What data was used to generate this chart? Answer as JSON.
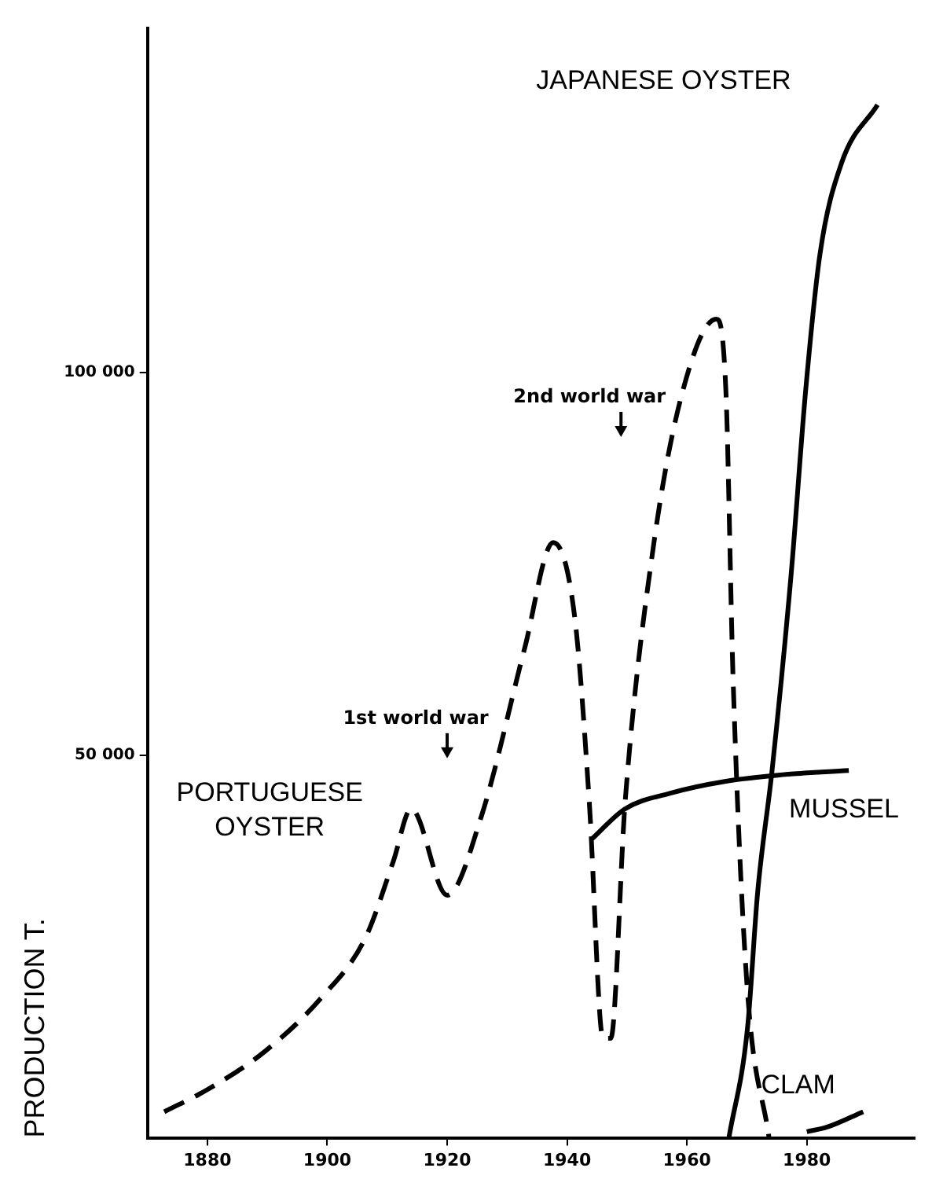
{
  "chart_data": {
    "type": "line",
    "ylabel": "PRODUCTION T.",
    "xlim": [
      1870,
      1998
    ],
    "ylim": [
      0,
      145000
    ],
    "xticks": [
      1880,
      1900,
      1920,
      1940,
      1960,
      1980
    ],
    "yticks": [
      {
        "value": 50000,
        "label": "50 000"
      },
      {
        "value": 100000,
        "label": "100 000"
      }
    ],
    "grid": false,
    "legend": false,
    "marker": "none",
    "series": [
      {
        "name": "PORTUGUESE OYSTER",
        "color": "#000000",
        "line_style": "dashed",
        "x": [
          1872.8,
          1880,
          1889.6,
          1899,
          1906.4,
          1911,
          1914,
          1920,
          1925.7,
          1932.9,
          1937.7,
          1941.3,
          1943.7,
          1946,
          1947.3,
          1949.7,
          1954.5,
          1959.3,
          1964.9,
          1966.5,
          1967.7,
          1970,
          1973.7
        ],
        "values": [
          3400,
          6300,
          11300,
          18300,
          26200,
          36100,
          43000,
          31700,
          42000,
          63900,
          77800,
          67900,
          44000,
          13000,
          13000,
          44000,
          77800,
          97600,
          107000,
          97600,
          60000,
          20200,
          0
        ]
      },
      {
        "name": "MUSSEL",
        "color": "#000000",
        "line_style": "solid",
        "x": [
          1944.2,
          1949.7,
          1957,
          1966.5,
          1975.2,
          1987
        ],
        "values": [
          39100,
          43000,
          45000,
          46600,
          47400,
          48000
        ]
      },
      {
        "name": "JAPANESE OYSTER",
        "color": "#000000",
        "line_style": "solid",
        "x": [
          1967,
          1970.1,
          1971.8,
          1974.2,
          1977.4,
          1979.8,
          1982.2,
          1985.8,
          1991.8
        ],
        "values": [
          0,
          14300,
          32100,
          48000,
          73800,
          97600,
          115500,
          127400,
          135000
        ]
      },
      {
        "name": "CLAM",
        "color": "#000000",
        "line_style": "solid",
        "x": [
          1980,
          1983.4,
          1989.4
        ],
        "values": [
          800,
          1400,
          3400
        ]
      }
    ],
    "annotations": [
      {
        "text": "1st world war",
        "x": 1920,
        "y": 50000
      },
      {
        "text": "2nd world war",
        "x": 1949,
        "y": 92000
      }
    ]
  }
}
